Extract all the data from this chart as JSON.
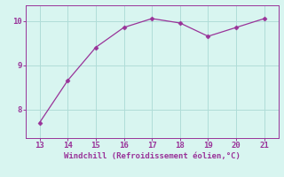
{
  "x": [
    13,
    14,
    15,
    16,
    17,
    18,
    19,
    20,
    21
  ],
  "y": [
    7.7,
    8.65,
    9.4,
    9.85,
    10.05,
    9.95,
    9.65,
    9.85,
    10.05
  ],
  "line_color": "#993399",
  "marker": "D",
  "marker_size": 2.5,
  "xlabel": "Windchill (Refroidissement éolien,°C)",
  "xlabel_fontsize": 6.5,
  "tick_fontsize": 6.5,
  "bg_color": "#d8f5f0",
  "grid_color": "#b0ddd8",
  "spine_color": "#993399",
  "tick_color": "#993399",
  "label_color": "#993399",
  "xlim": [
    12.5,
    21.5
  ],
  "ylim": [
    7.35,
    10.35
  ],
  "yticks": [
    8,
    9,
    10
  ],
  "xticks": [
    13,
    14,
    15,
    16,
    17,
    18,
    19,
    20,
    21
  ]
}
